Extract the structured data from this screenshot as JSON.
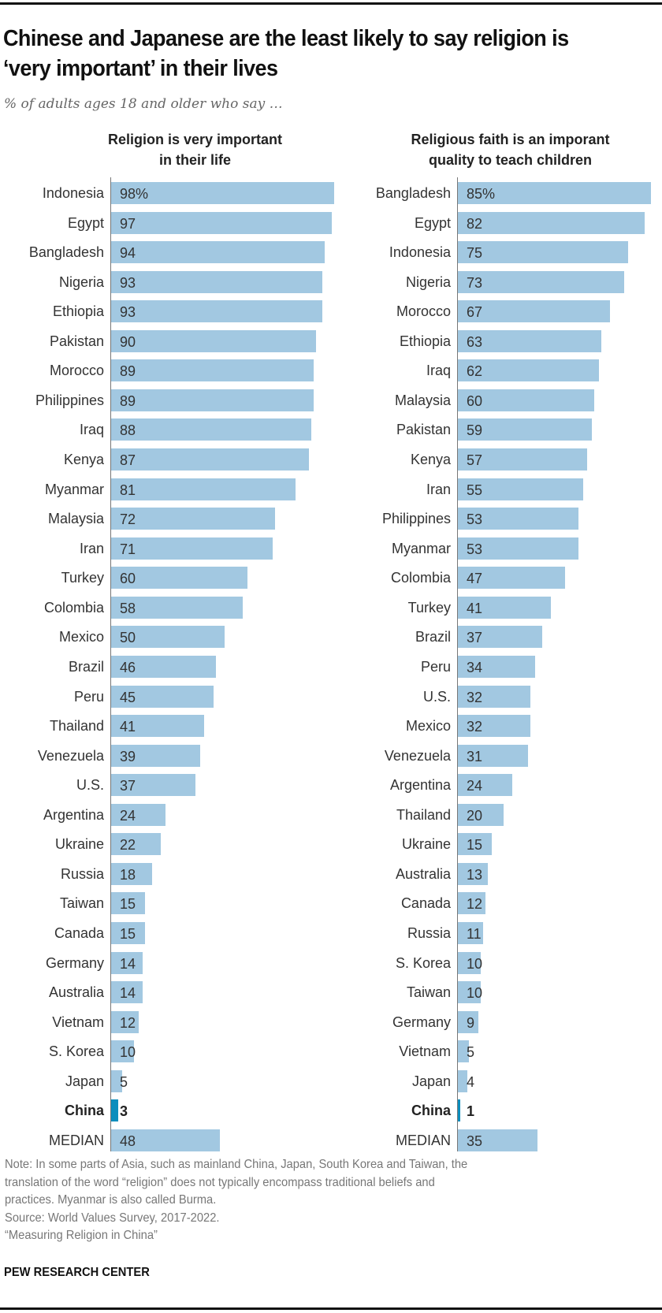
{
  "header": {
    "title": "Chinese and Japanese are the least likely to say religion is ‘very important’ in their lives",
    "subtitle": "% of adults ages 18 and older who say …"
  },
  "panels": {
    "left": {
      "title_line1": "Religion is very important",
      "title_line2": "in their life"
    },
    "right": {
      "title_line1": "Religious faith is an imporant",
      "title_line2": "quality to teach children"
    }
  },
  "footer": {
    "note_line1": "Note: In some parts of Asia, such as mainland China, Japan, South Korea and Taiwan, the",
    "note_line2": "translation of the word “religion” does not typically encompass traditional beliefs and",
    "note_line3": "practices. Myanmar is also called Burma.",
    "source": "Source: World Values Survey, 2017-2022.",
    "report": "“Measuring Religion in China”",
    "brand": "PEW RESEARCH CENTER"
  },
  "colors": {
    "bar": "#a2c8e1",
    "highlight": "#0d8ebd",
    "axis": "#777777"
  },
  "chart_data": [
    {
      "type": "bar",
      "orientation": "horizontal",
      "title": "Religion is very important in their life",
      "xlabel": "",
      "ylabel": "",
      "unit": "%",
      "xlim": [
        0,
        100
      ],
      "grid": false,
      "legend": null,
      "highlight": "China",
      "categories": [
        "Indonesia",
        "Egypt",
        "Bangladesh",
        "Nigeria",
        "Ethiopia",
        "Pakistan",
        "Morocco",
        "Philippines",
        "Iraq",
        "Kenya",
        "Myanmar",
        "Malaysia",
        "Iran",
        "Turkey",
        "Colombia",
        "Mexico",
        "Brazil",
        "Peru",
        "Thailand",
        "Venezuela",
        "U.S.",
        "Argentina",
        "Ukraine",
        "Russia",
        "Taiwan",
        "Canada",
        "Germany",
        "Australia",
        "Vietnam",
        "S. Korea",
        "Japan",
        "China",
        "MEDIAN"
      ],
      "values": [
        98,
        97,
        94,
        93,
        93,
        90,
        89,
        89,
        88,
        87,
        81,
        72,
        71,
        60,
        58,
        50,
        46,
        45,
        41,
        39,
        37,
        24,
        22,
        18,
        15,
        15,
        14,
        14,
        12,
        10,
        5,
        3,
        48
      ],
      "value_labels": [
        "98%",
        "97",
        "94",
        "93",
        "93",
        "90",
        "89",
        "89",
        "88",
        "87",
        "81",
        "72",
        "71",
        "60",
        "58",
        "50",
        "46",
        "45",
        "41",
        "39",
        "37",
        "24",
        "22",
        "18",
        "15",
        "15",
        "14",
        "14",
        "12",
        "10",
        "5",
        "3",
        "48"
      ]
    },
    {
      "type": "bar",
      "orientation": "horizontal",
      "title": "Religious faith is an imporant quality to teach children",
      "xlabel": "",
      "ylabel": "",
      "unit": "%",
      "xlim": [
        0,
        100
      ],
      "grid": false,
      "legend": null,
      "highlight": "China",
      "categories": [
        "Bangladesh",
        "Egypt",
        "Indonesia",
        "Nigeria",
        "Morocco",
        "Ethiopia",
        "Iraq",
        "Malaysia",
        "Pakistan",
        "Kenya",
        "Iran",
        "Philippines",
        "Myanmar",
        "Colombia",
        "Turkey",
        "Brazil",
        "Peru",
        "U.S.",
        "Mexico",
        "Venezuela",
        "Argentina",
        "Thailand",
        "Ukraine",
        "Australia",
        "Canada",
        "Russia",
        "S. Korea",
        "Taiwan",
        "Germany",
        "Vietnam",
        "Japan",
        "China",
        "MEDIAN"
      ],
      "values": [
        85,
        82,
        75,
        73,
        67,
        63,
        62,
        60,
        59,
        57,
        55,
        53,
        53,
        47,
        41,
        37,
        34,
        32,
        32,
        31,
        24,
        20,
        15,
        13,
        12,
        11,
        10,
        10,
        9,
        5,
        4,
        1,
        35
      ],
      "value_labels": [
        "85%",
        "82",
        "75",
        "73",
        "67",
        "63",
        "62",
        "60",
        "59",
        "57",
        "55",
        "53",
        "53",
        "47",
        "41",
        "37",
        "34",
        "32",
        "32",
        "31",
        "24",
        "20",
        "15",
        "13",
        "12",
        "11",
        "10",
        "10",
        "9",
        "5",
        "4",
        "1",
        "35"
      ]
    }
  ]
}
